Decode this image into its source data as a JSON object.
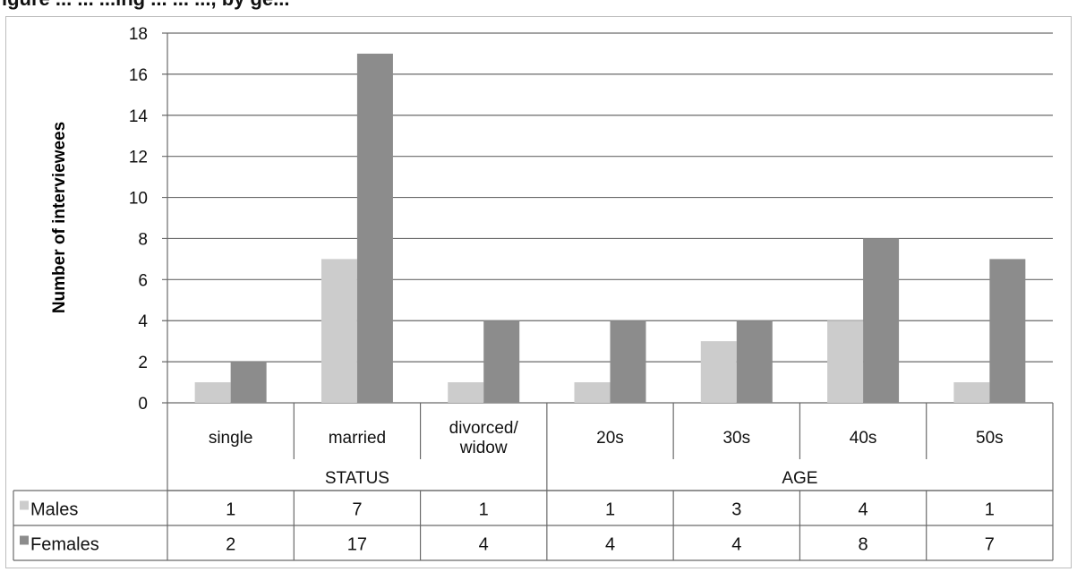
{
  "title": "igure ... ... ...ing ... ... ..., by ge...",
  "chart_data": {
    "type": "bar",
    "ylabel": "Number of interviewees",
    "ylim": [
      0,
      18
    ],
    "yticks": [
      0,
      2,
      4,
      6,
      8,
      10,
      12,
      14,
      16,
      18
    ],
    "grid": true,
    "legend": "data table below chart",
    "groups": [
      {
        "label": "STATUS",
        "categories": [
          "single",
          "married",
          "divorced/ widow"
        ]
      },
      {
        "label": "AGE",
        "categories": [
          "20s",
          "30s",
          "40s",
          "50s"
        ]
      }
    ],
    "categories": [
      "single",
      "married",
      "divorced/ widow",
      "20s",
      "30s",
      "40s",
      "50s"
    ],
    "category_lines": [
      [
        "single"
      ],
      [
        "married"
      ],
      [
        "divorced/",
        "widow"
      ],
      [
        "20s"
      ],
      [
        "30s"
      ],
      [
        "40s"
      ],
      [
        "50s"
      ]
    ],
    "series": [
      {
        "name": "Males",
        "color": "#cccccc",
        "values": [
          1,
          7,
          1,
          1,
          3,
          4,
          1
        ]
      },
      {
        "name": "Females",
        "color": "#8c8c8c",
        "values": [
          2,
          17,
          4,
          4,
          4,
          8,
          7
        ]
      }
    ]
  }
}
